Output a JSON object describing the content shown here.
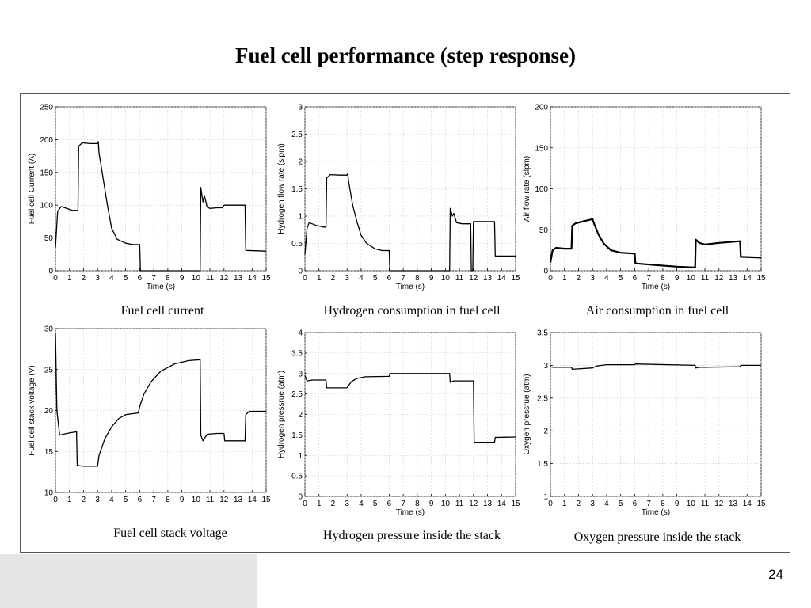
{
  "slide": {
    "title": "Fuel cell performance (step response)",
    "page_number": "24"
  },
  "chart_data": [
    {
      "type": "line",
      "caption": "Fuel cell current",
      "xlabel": "Time (s)",
      "ylabel": "Fuel cell Current (A)",
      "xlim": [
        0,
        15
      ],
      "ylim": [
        0,
        250
      ],
      "xticks": [
        0,
        1,
        2,
        3,
        4,
        5,
        6,
        7,
        8,
        9,
        10,
        11,
        12,
        13,
        14,
        15
      ],
      "yticks": [
        0,
        50,
        100,
        150,
        200,
        250
      ],
      "grid": true,
      "series": [
        {
          "values": [
            [
              0,
              35
            ],
            [
              0.15,
              90
            ],
            [
              0.4,
              98
            ],
            [
              0.8,
              95
            ],
            [
              1.2,
              92
            ],
            [
              1.6,
              92
            ],
            [
              1.65,
              190
            ],
            [
              1.9,
              195
            ],
            [
              2.5,
              194
            ],
            [
              3.0,
              194
            ],
            [
              3.05,
              197
            ],
            [
              3.1,
              180
            ],
            [
              3.4,
              140
            ],
            [
              3.7,
              100
            ],
            [
              4.0,
              65
            ],
            [
              4.4,
              48
            ],
            [
              5.0,
              42
            ],
            [
              5.5,
              40
            ],
            [
              6.0,
              40
            ],
            [
              6.05,
              0
            ],
            [
              10.3,
              0
            ],
            [
              10.35,
              127
            ],
            [
              10.5,
              105
            ],
            [
              10.6,
              115
            ],
            [
              10.8,
              97
            ],
            [
              11.0,
              95
            ],
            [
              11.5,
              96
            ],
            [
              11.9,
              96
            ],
            [
              12.0,
              100
            ],
            [
              13.5,
              100
            ],
            [
              13.55,
              31
            ],
            [
              15,
              30
            ]
          ]
        }
      ]
    },
    {
      "type": "line",
      "caption": "Hydrogen consumption in fuel cell",
      "xlabel": "Time (s)",
      "ylabel": "Hydrogen flow rate (slpm)",
      "xlim": [
        0,
        15
      ],
      "ylim": [
        0,
        3
      ],
      "xticks": [
        0,
        1,
        2,
        3,
        4,
        5,
        6,
        7,
        8,
        9,
        10,
        11,
        12,
        13,
        14,
        15
      ],
      "yticks": [
        0,
        0.5,
        1,
        1.5,
        2,
        2.5,
        3
      ],
      "grid": true,
      "series": [
        {
          "values": [
            [
              0,
              0.3
            ],
            [
              0.15,
              0.78
            ],
            [
              0.3,
              0.88
            ],
            [
              0.8,
              0.83
            ],
            [
              1.3,
              0.8
            ],
            [
              1.5,
              0.8
            ],
            [
              1.55,
              1.7
            ],
            [
              1.8,
              1.76
            ],
            [
              2.5,
              1.75
            ],
            [
              3.0,
              1.75
            ],
            [
              3.05,
              1.78
            ],
            [
              3.1,
              1.65
            ],
            [
              3.4,
              1.2
            ],
            [
              3.7,
              0.9
            ],
            [
              4.0,
              0.65
            ],
            [
              4.4,
              0.5
            ],
            [
              5.0,
              0.4
            ],
            [
              5.5,
              0.37
            ],
            [
              6.0,
              0.37
            ],
            [
              6.05,
              0
            ],
            [
              10.3,
              0
            ],
            [
              10.35,
              1.14
            ],
            [
              10.5,
              1.0
            ],
            [
              10.6,
              1.05
            ],
            [
              10.8,
              0.88
            ],
            [
              11.2,
              0.86
            ],
            [
              11.8,
              0.86
            ],
            [
              11.85,
              0
            ],
            [
              11.95,
              0
            ],
            [
              12.0,
              0.9
            ],
            [
              13.5,
              0.9
            ],
            [
              13.55,
              0.27
            ],
            [
              15,
              0.27
            ]
          ]
        }
      ]
    },
    {
      "type": "line",
      "caption": "Air consumption in fuel cell",
      "xlabel": "Time (s)",
      "ylabel": "Air flow rate (slpm)",
      "xlim": [
        0,
        15
      ],
      "ylim": [
        0,
        200
      ],
      "xticks": [
        0,
        1,
        2,
        3,
        4,
        5,
        6,
        7,
        8,
        9,
        10,
        11,
        12,
        13,
        14,
        15
      ],
      "yticks": [
        0,
        50,
        100,
        150,
        200
      ],
      "grid": true,
      "series": [
        {
          "values": [
            [
              0,
              10
            ],
            [
              0.15,
              25
            ],
            [
              0.4,
              28
            ],
            [
              1.0,
              27
            ],
            [
              1.5,
              27
            ],
            [
              1.55,
              55
            ],
            [
              1.8,
              58
            ],
            [
              2.5,
              61
            ],
            [
              3.0,
              63
            ],
            [
              3.05,
              60
            ],
            [
              3.4,
              45
            ],
            [
              3.8,
              33
            ],
            [
              4.3,
              25
            ],
            [
              5.0,
              22
            ],
            [
              6.0,
              21
            ],
            [
              6.05,
              9
            ],
            [
              7.5,
              7
            ],
            [
              9.0,
              5
            ],
            [
              10.3,
              4
            ],
            [
              10.35,
              38
            ],
            [
              10.6,
              34
            ],
            [
              11.0,
              32
            ],
            [
              12.0,
              34
            ],
            [
              13.5,
              36
            ],
            [
              13.55,
              17
            ],
            [
              15,
              16
            ]
          ]
        }
      ]
    },
    {
      "type": "line",
      "caption": "Fuel cell stack voltage",
      "xlabel": "",
      "ylabel": "Fuel cell stack voltage (V)",
      "xlim": [
        0,
        15
      ],
      "ylim": [
        10,
        30
      ],
      "xticks": [
        0,
        1,
        2,
        3,
        4,
        5,
        6,
        7,
        8,
        9,
        10,
        11,
        12,
        13,
        14,
        15
      ],
      "yticks": [
        10,
        15,
        20,
        25,
        30
      ],
      "grid": true,
      "series": [
        {
          "values": [
            [
              0,
              29.5
            ],
            [
              0.1,
              20
            ],
            [
              0.3,
              17
            ],
            [
              0.8,
              17.2
            ],
            [
              1.5,
              17.4
            ],
            [
              1.55,
              13.3
            ],
            [
              2.0,
              13.2
            ],
            [
              3.0,
              13.2
            ],
            [
              3.1,
              14.5
            ],
            [
              3.5,
              16.5
            ],
            [
              4.0,
              18.0
            ],
            [
              4.5,
              19.0
            ],
            [
              5.0,
              19.5
            ],
            [
              5.9,
              19.7
            ],
            [
              6.0,
              20.5
            ],
            [
              6.3,
              22.0
            ],
            [
              6.8,
              23.5
            ],
            [
              7.5,
              24.8
            ],
            [
              8.5,
              25.7
            ],
            [
              9.5,
              26.1
            ],
            [
              10.3,
              26.2
            ],
            [
              10.35,
              17.0
            ],
            [
              10.5,
              16.3
            ],
            [
              10.8,
              17.1
            ],
            [
              11.5,
              17.2
            ],
            [
              12.0,
              17.2
            ],
            [
              12.05,
              16.3
            ],
            [
              13.5,
              16.3
            ],
            [
              13.55,
              19.5
            ],
            [
              13.8,
              19.9
            ],
            [
              15,
              19.9
            ]
          ]
        }
      ]
    },
    {
      "type": "line",
      "caption": "Hydrogen pressure inside the stack",
      "xlabel": "Time (s)",
      "ylabel": "Hydrogen pressrue (atm)",
      "xlim": [
        0,
        15
      ],
      "ylim": [
        0,
        4
      ],
      "xticks": [
        0,
        1,
        2,
        3,
        4,
        5,
        6,
        7,
        8,
        9,
        10,
        11,
        12,
        13,
        14,
        15
      ],
      "yticks": [
        0,
        0.5,
        1,
        1.5,
        2,
        2.5,
        3,
        3.5,
        4
      ],
      "grid": true,
      "series": [
        {
          "values": [
            [
              0,
              2.95
            ],
            [
              0.15,
              2.82
            ],
            [
              0.5,
              2.84
            ],
            [
              1.5,
              2.84
            ],
            [
              1.55,
              2.65
            ],
            [
              3.0,
              2.65
            ],
            [
              3.3,
              2.8
            ],
            [
              3.7,
              2.88
            ],
            [
              4.3,
              2.92
            ],
            [
              6.0,
              2.93
            ],
            [
              6.05,
              3.0
            ],
            [
              10.3,
              3.0
            ],
            [
              10.35,
              2.78
            ],
            [
              10.6,
              2.82
            ],
            [
              12.0,
              2.82
            ],
            [
              12.05,
              1.32
            ],
            [
              13.5,
              1.32
            ],
            [
              13.55,
              1.44
            ],
            [
              15,
              1.45
            ]
          ]
        }
      ]
    },
    {
      "type": "line",
      "caption": "Oxygen pressure inside the stack",
      "xlabel": "Time (s)",
      "ylabel": "Oxygen pressrue (atm)",
      "xlim": [
        0,
        15
      ],
      "ylim": [
        1,
        3.5
      ],
      "xticks": [
        0,
        1,
        2,
        3,
        4,
        5,
        6,
        7,
        8,
        9,
        10,
        11,
        12,
        13,
        14,
        15
      ],
      "yticks": [
        1,
        1.5,
        2,
        2.5,
        3,
        3.5
      ],
      "grid": true,
      "series": [
        {
          "values": [
            [
              0,
              2.98
            ],
            [
              0.15,
              2.97
            ],
            [
              1.5,
              2.97
            ],
            [
              1.55,
              2.94
            ],
            [
              3.0,
              2.96
            ],
            [
              3.3,
              2.99
            ],
            [
              4.0,
              3.01
            ],
            [
              6.0,
              3.01
            ],
            [
              6.05,
              3.02
            ],
            [
              10.3,
              3.0
            ],
            [
              10.35,
              2.96
            ],
            [
              10.6,
              2.97
            ],
            [
              13.5,
              2.98
            ],
            [
              13.55,
              3.0
            ],
            [
              15,
              3.0
            ]
          ]
        }
      ]
    }
  ]
}
